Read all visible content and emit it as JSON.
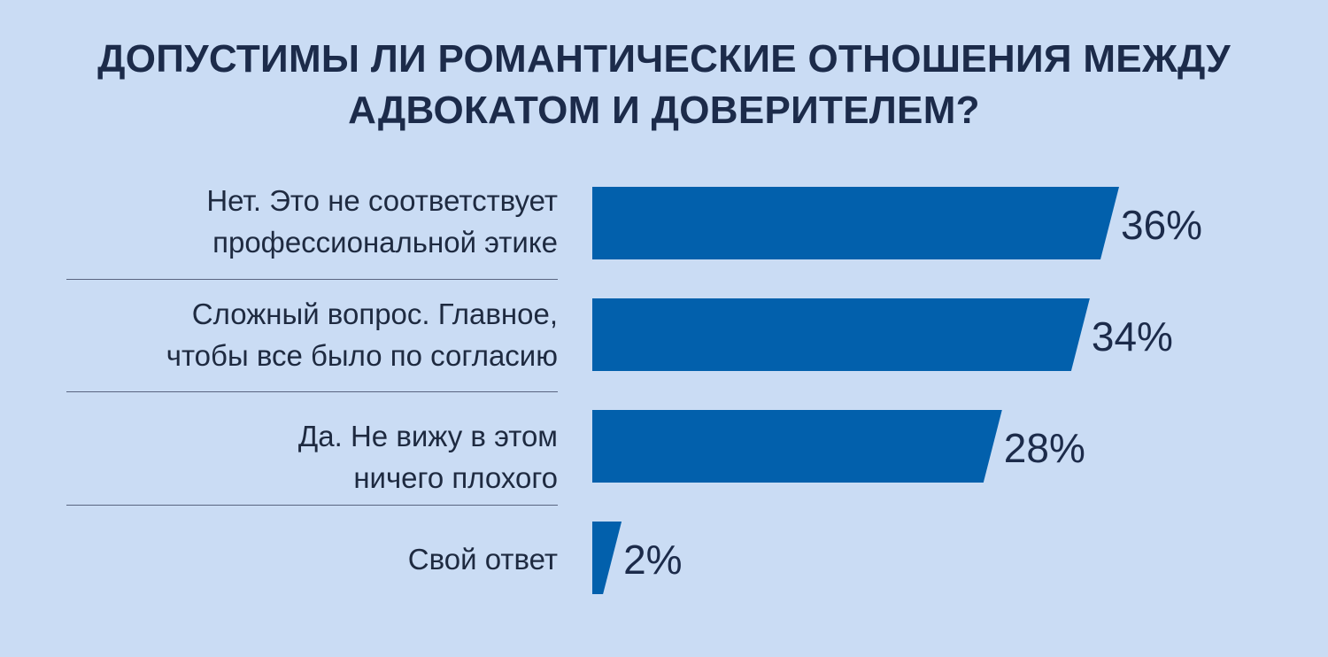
{
  "title": "ДОПУСТИМЫ ЛИ РОМАНТИЧЕСКИЕ ОТНОШЕНИЯ МЕЖДУ АДВОКАТОМ И ДОВЕРИТЕЛЕМ?",
  "colors": {
    "background": "#cadcf4",
    "bar": "#0260ac",
    "text": "#1c2b4a"
  },
  "chart_data": {
    "type": "bar",
    "orientation": "horizontal",
    "title": "ДОПУСТИМЫ ЛИ РОМАНТИЧЕСКИЕ ОТНОШЕНИЯ МЕЖДУ АДВОКАТОМ И ДОВЕРИТЕЛЕМ?",
    "categories": [
      "Нет. Это не соответствует\nпрофессиональной этике",
      "Сложный вопрос. Главное,\nчтобы все было по согласию",
      "Да. Не вижу в этом\nничего плохого",
      "Свой ответ"
    ],
    "values": [
      36,
      34,
      28,
      2
    ],
    "value_labels": [
      "36%",
      "34%",
      "28%",
      "2%"
    ],
    "unit": "%",
    "xlim": [
      0,
      36
    ],
    "grid": false,
    "legend": "none"
  }
}
